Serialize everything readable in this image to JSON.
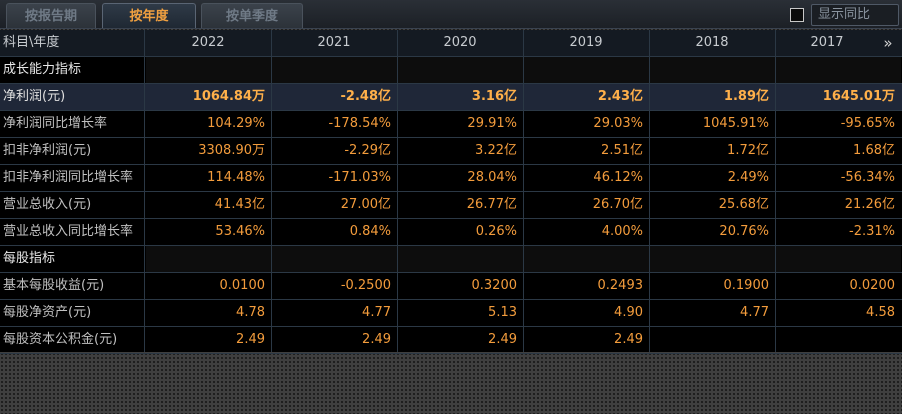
{
  "tabs": [
    {
      "label": "按报告期",
      "active": false
    },
    {
      "label": "按年度",
      "active": true
    },
    {
      "label": "按单季度",
      "active": false
    }
  ],
  "show_yoy": {
    "label": "显示同比",
    "checked": false
  },
  "header": {
    "label": "科目\\年度",
    "years": [
      "2022",
      "2021",
      "2020",
      "2019",
      "2018",
      "2017"
    ],
    "more_icon": "double-chevron-right-icon"
  },
  "rows": [
    {
      "label": "成长能力指标",
      "section": true,
      "values": [
        "",
        "",
        "",
        "",
        "",
        ""
      ]
    },
    {
      "label": "净利润(元)",
      "highlight": true,
      "values": [
        "1064.84万",
        "-2.48亿",
        "3.16亿",
        "2.43亿",
        "1.89亿",
        "1645.01万"
      ]
    },
    {
      "label": "净利润同比增长率",
      "values": [
        "104.29%",
        "-178.54%",
        "29.91%",
        "29.03%",
        "1045.91%",
        "-95.65%"
      ]
    },
    {
      "label": "扣非净利润(元)",
      "values": [
        "3308.90万",
        "-2.29亿",
        "3.22亿",
        "2.51亿",
        "1.72亿",
        "1.68亿"
      ]
    },
    {
      "label": "扣非净利润同比增长率",
      "values": [
        "114.48%",
        "-171.03%",
        "28.04%",
        "46.12%",
        "2.49%",
        "-56.34%"
      ]
    },
    {
      "label": "营业总收入(元)",
      "values": [
        "41.43亿",
        "27.00亿",
        "26.77亿",
        "26.70亿",
        "25.68亿",
        "21.26亿"
      ]
    },
    {
      "label": "营业总收入同比增长率",
      "values": [
        "53.46%",
        "0.84%",
        "0.26%",
        "4.00%",
        "20.76%",
        "-2.31%"
      ]
    },
    {
      "label": "每股指标",
      "section": true,
      "values": [
        "",
        "",
        "",
        "",
        "",
        ""
      ]
    },
    {
      "label": "基本每股收益(元)",
      "values": [
        "0.0100",
        "-0.2500",
        "0.3200",
        "0.2493",
        "0.1900",
        "0.0200"
      ]
    },
    {
      "label": "每股净资产(元)",
      "values": [
        "4.78",
        "4.77",
        "5.13",
        "4.90",
        "4.77",
        "4.58"
      ]
    },
    {
      "label": "每股资本公积金(元)",
      "values": [
        "2.49",
        "2.49",
        "2.49",
        "2.49",
        "",
        ""
      ]
    }
  ],
  "colors": {
    "value": "#f39c3c",
    "highlight_row_bg": "#1f2738",
    "grid": "#2b3845",
    "active_tab": "#f0a040"
  }
}
